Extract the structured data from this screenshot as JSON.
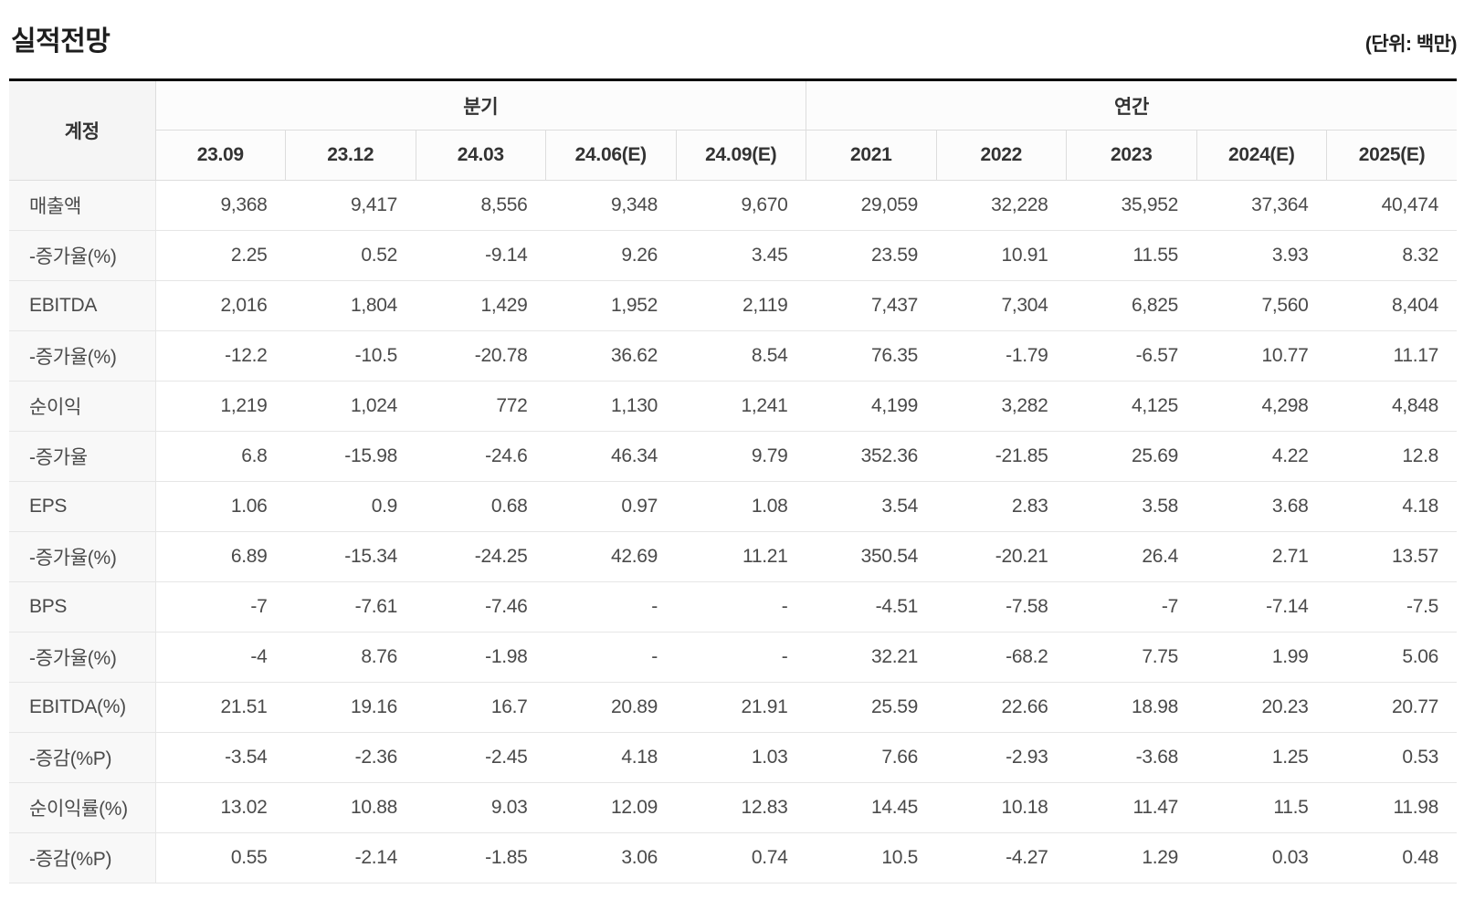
{
  "title": "실적전망",
  "unit_note": "(단위: 백만)",
  "chart_data": {
    "type": "table",
    "corner_header": "계정",
    "column_groups": [
      {
        "label": "분기",
        "columns": [
          "23.09",
          "23.12",
          "24.03",
          "24.06(E)",
          "24.09(E)"
        ]
      },
      {
        "label": "연간",
        "columns": [
          "2021",
          "2022",
          "2023",
          "2024(E)",
          "2025(E)"
        ]
      }
    ],
    "rows": [
      {
        "label": "매출액",
        "values": [
          "9,368",
          "9,417",
          "8,556",
          "9,348",
          "9,670",
          "29,059",
          "32,228",
          "35,952",
          "37,364",
          "40,474"
        ]
      },
      {
        "label": "-증가율(%)",
        "values": [
          "2.25",
          "0.52",
          "-9.14",
          "9.26",
          "3.45",
          "23.59",
          "10.91",
          "11.55",
          "3.93",
          "8.32"
        ]
      },
      {
        "label": "EBITDA",
        "values": [
          "2,016",
          "1,804",
          "1,429",
          "1,952",
          "2,119",
          "7,437",
          "7,304",
          "6,825",
          "7,560",
          "8,404"
        ]
      },
      {
        "label": "-증가율(%)",
        "values": [
          "-12.2",
          "-10.5",
          "-20.78",
          "36.62",
          "8.54",
          "76.35",
          "-1.79",
          "-6.57",
          "10.77",
          "11.17"
        ]
      },
      {
        "label": "순이익",
        "values": [
          "1,219",
          "1,024",
          "772",
          "1,130",
          "1,241",
          "4,199",
          "3,282",
          "4,125",
          "4,298",
          "4,848"
        ]
      },
      {
        "label": "-증가율",
        "values": [
          "6.8",
          "-15.98",
          "-24.6",
          "46.34",
          "9.79",
          "352.36",
          "-21.85",
          "25.69",
          "4.22",
          "12.8"
        ]
      },
      {
        "label": "EPS",
        "values": [
          "1.06",
          "0.9",
          "0.68",
          "0.97",
          "1.08",
          "3.54",
          "2.83",
          "3.58",
          "3.68",
          "4.18"
        ]
      },
      {
        "label": "-증가율(%)",
        "values": [
          "6.89",
          "-15.34",
          "-24.25",
          "42.69",
          "11.21",
          "350.54",
          "-20.21",
          "26.4",
          "2.71",
          "13.57"
        ]
      },
      {
        "label": "BPS",
        "values": [
          "-7",
          "-7.61",
          "-7.46",
          "-",
          "-",
          "-4.51",
          "-7.58",
          "-7",
          "-7.14",
          "-7.5"
        ]
      },
      {
        "label": "-증가율(%)",
        "values": [
          "-4",
          "8.76",
          "-1.98",
          "-",
          "-",
          "32.21",
          "-68.2",
          "7.75",
          "1.99",
          "5.06"
        ]
      },
      {
        "label": "EBITDA(%)",
        "values": [
          "21.51",
          "19.16",
          "16.7",
          "20.89",
          "21.91",
          "25.59",
          "22.66",
          "18.98",
          "20.23",
          "20.77"
        ]
      },
      {
        "label": "-증감(%P)",
        "values": [
          "-3.54",
          "-2.36",
          "-2.45",
          "4.18",
          "1.03",
          "7.66",
          "-2.93",
          "-3.68",
          "1.25",
          "0.53"
        ]
      },
      {
        "label": "순이익률(%)",
        "values": [
          "13.02",
          "10.88",
          "9.03",
          "12.09",
          "12.83",
          "14.45",
          "10.18",
          "11.47",
          "11.5",
          "11.98"
        ]
      },
      {
        "label": "-증감(%P)",
        "values": [
          "0.55",
          "-2.14",
          "-1.85",
          "3.06",
          "0.74",
          "10.5",
          "-4.27",
          "1.29",
          "0.03",
          "0.48"
        ]
      }
    ]
  },
  "colors": {
    "top_border": "#000000",
    "header_border": "#dddddd",
    "row_border": "#e6e6e6",
    "corner_bg": "#f5f5f5",
    "header_bg": "#fcfcfc",
    "label_bg": "#f8f8f8",
    "title_text": "#1e1e1e",
    "header_text": "#333333",
    "cell_text": "#4a4a4a"
  }
}
